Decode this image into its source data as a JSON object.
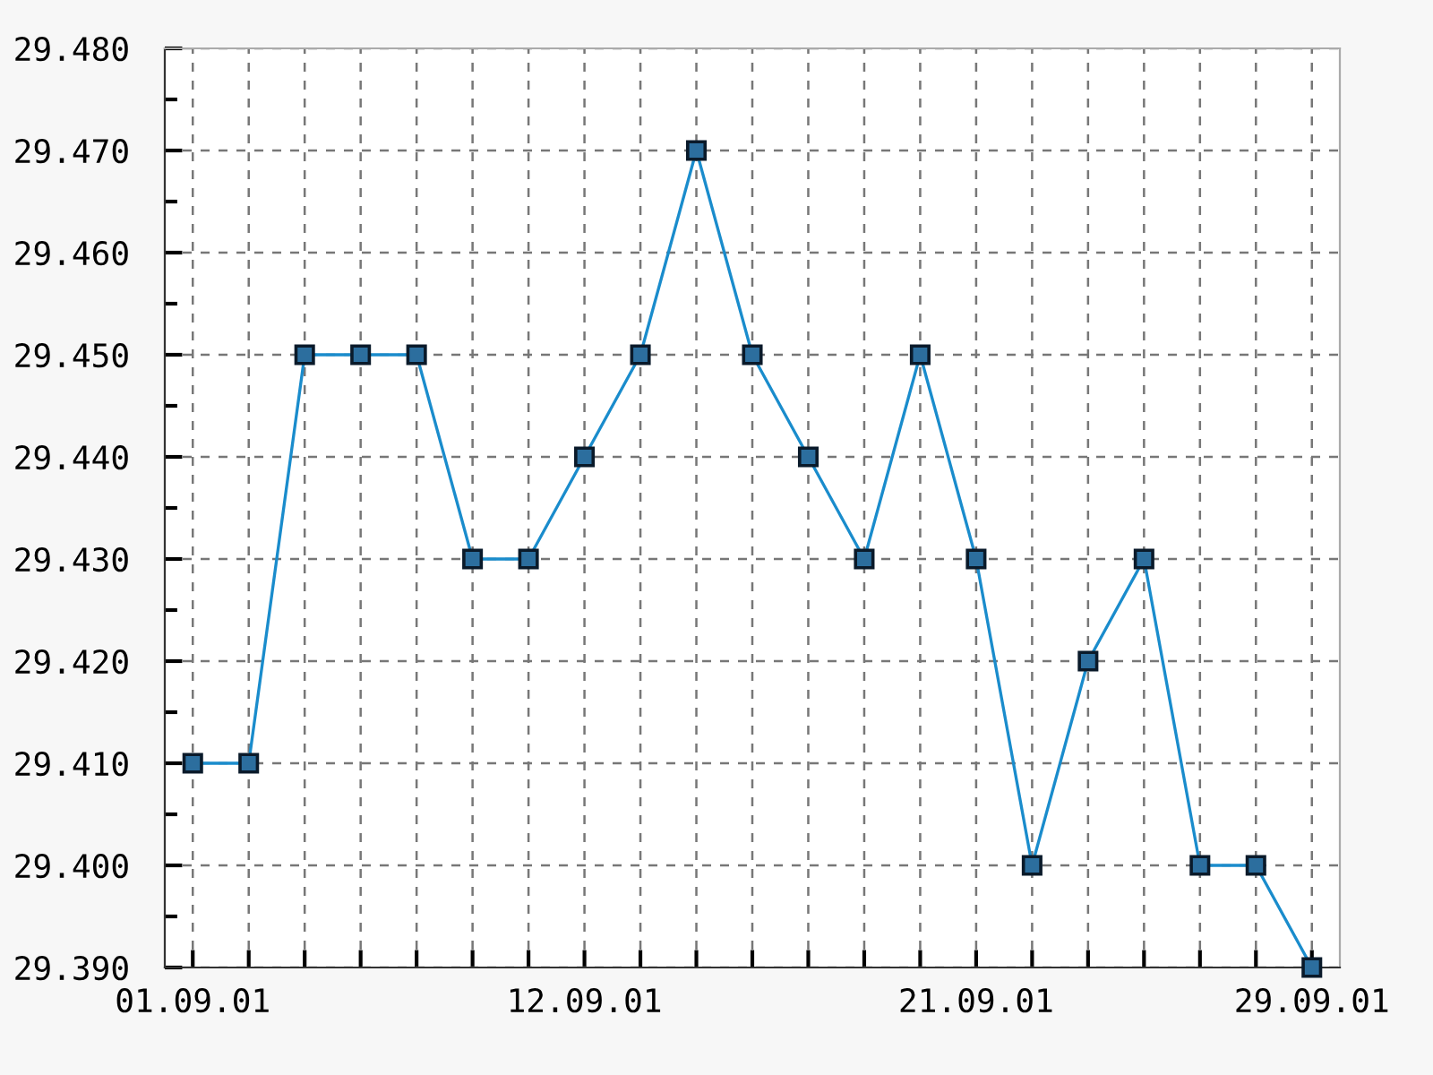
{
  "chart_data": {
    "type": "line",
    "categories": [
      "01.09.01",
      null,
      null,
      null,
      null,
      null,
      null,
      "12.09.01",
      null,
      null,
      null,
      null,
      null,
      null,
      "21.09.01",
      null,
      null,
      null,
      null,
      null,
      "29.09.01"
    ],
    "series": [
      {
        "color": "#1a8ccc",
        "values": [
          29.41,
          29.41,
          29.45,
          29.45,
          29.45,
          29.43,
          29.43,
          29.44,
          29.45,
          29.47,
          29.45,
          29.44,
          29.43,
          29.45,
          29.43,
          29.4,
          29.42,
          29.43,
          29.4,
          29.4,
          29.39
        ]
      }
    ],
    "ylim": [
      29.39,
      29.48
    ],
    "yticks": [
      {
        "value": 29.39,
        "label": "29.390"
      },
      {
        "value": 29.395,
        "label": null
      },
      {
        "value": 29.4,
        "label": "29.400"
      },
      {
        "value": 29.405,
        "label": null
      },
      {
        "value": 29.41,
        "label": "29.410"
      },
      {
        "value": 29.415,
        "label": null
      },
      {
        "value": 29.42,
        "label": "29.420"
      },
      {
        "value": 29.425,
        "label": null
      },
      {
        "value": 29.43,
        "label": "29.430"
      },
      {
        "value": 29.435,
        "label": null
      },
      {
        "value": 29.44,
        "label": "29.440"
      },
      {
        "value": 29.445,
        "label": null
      },
      {
        "value": 29.45,
        "label": "29.450"
      },
      {
        "value": 29.455,
        "label": null
      },
      {
        "value": 29.46,
        "label": "29.460"
      },
      {
        "value": 29.465,
        "label": null
      },
      {
        "value": 29.47,
        "label": "29.470"
      },
      {
        "value": 29.475,
        "label": null
      },
      {
        "value": 29.48,
        "label": "29.480"
      }
    ],
    "grid": true,
    "marker": "square",
    "line_style": "solid",
    "legend": false
  }
}
